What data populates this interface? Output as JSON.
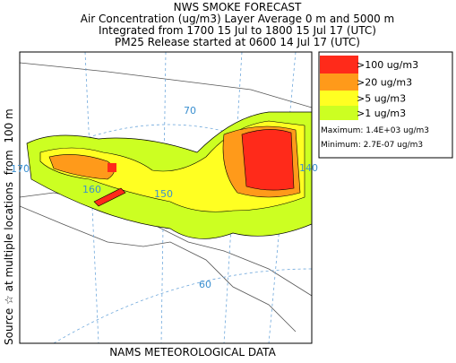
{
  "header": {
    "title": "NWS SMOKE FORECAST",
    "lines": [
      "Air Concentration (ug/m3) Layer Average    0 m and  5000 m",
      "Integrated from 1700 15 Jul to 1800 15 Jul 17 (UTC)",
      "PM25 Release started at 0600 14 Jul 17 (UTC)"
    ]
  },
  "side_text": "Source ☆ at multiple locations  from  100 m",
  "legend": {
    "entries": [
      {
        "label": ">100 ug/m3",
        "color": "#ff2a1a"
      },
      {
        "label": ">20 ug/m3",
        "color": "#ff9a1a"
      },
      {
        "label": ">5 ug/m3",
        "color": "#ffff22"
      },
      {
        "label": ">1 ug/m3",
        "color": "#ccff22"
      }
    ],
    "maximum": "Maximum: 1.4E+03 ug/m3",
    "minimum": "Minimum: 2.7E-07 ug/m3"
  },
  "map": {
    "graticule_labels": [
      "70",
      "170",
      "160",
      "150",
      "140",
      "60"
    ]
  },
  "footer": "NAMS METEOROLOGICAL DATA"
}
